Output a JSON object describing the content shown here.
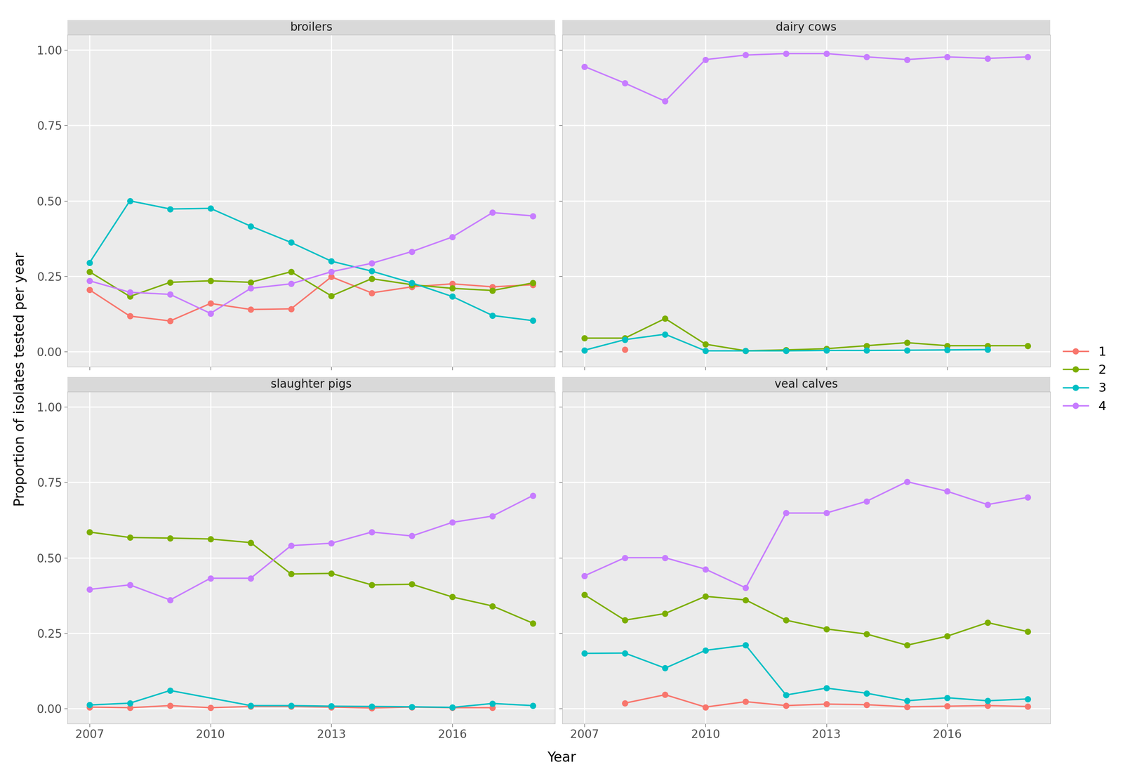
{
  "chart_data": {
    "type": "line",
    "x_label": "Year",
    "y_label": "Proportion of isolates tested per year",
    "legend": "right",
    "grid": true,
    "marker": "circle",
    "line_style": "solid",
    "x": [
      2007,
      2008,
      2009,
      2010,
      2011,
      2012,
      2013,
      2014,
      2015,
      2016,
      2017,
      2018
    ],
    "xlim": [
      2006.45,
      2018.55
    ],
    "ylim": [
      -0.05,
      1.05
    ],
    "xticks": [
      2007,
      2010,
      2013,
      2016
    ],
    "yticks": [
      {
        "value": 0,
        "label": "0.00"
      },
      {
        "value": 0.25,
        "label": "0.25"
      },
      {
        "value": 0.5,
        "label": "0.50"
      },
      {
        "value": 0.75,
        "label": "0.75"
      },
      {
        "value": 1,
        "label": "1.00"
      }
    ],
    "facets": [
      {
        "title": "broilers",
        "series": [
          {
            "name": "1",
            "color": "#F8766D",
            "values": [
              0.205,
              0.118,
              0.102,
              0.16,
              0.14,
              0.142,
              0.248,
              0.195,
              0.215,
              0.225,
              0.215,
              0.222
            ]
          },
          {
            "name": "2",
            "color": "#7CAE00",
            "values": [
              0.265,
              0.183,
              0.23,
              0.235,
              0.23,
              0.265,
              0.185,
              0.242,
              0.222,
              0.21,
              0.203,
              0.228
            ]
          },
          {
            "name": "3",
            "color": "#00BFC4",
            "values": [
              0.295,
              0.5,
              0.473,
              0.475,
              0.416,
              0.362,
              0.3,
              0.267,
              0.228,
              0.183,
              0.12,
              0.103
            ]
          },
          {
            "name": "4",
            "color": "#C77CFF",
            "values": [
              0.235,
              0.197,
              0.19,
              0.127,
              0.21,
              0.225,
              0.265,
              0.293,
              0.332,
              0.38,
              0.461,
              0.45
            ]
          }
        ]
      },
      {
        "title": "dairy cows",
        "series": [
          {
            "name": "1",
            "color": "#F8766D",
            "values": [
              null,
              0.007,
              null,
              null,
              null,
              null,
              null,
              null,
              null,
              null,
              null,
              null
            ]
          },
          {
            "name": "2",
            "color": "#7CAE00",
            "values": [
              0.045,
              0.045,
              0.11,
              0.025,
              0.003,
              0.006,
              0.01,
              0.02,
              0.03,
              0.02,
              0.02,
              0.02
            ]
          },
          {
            "name": "3",
            "color": "#00BFC4",
            "values": [
              0.005,
              0.04,
              0.058,
              0.003,
              0.003,
              0.003,
              0.004,
              0.004,
              0.005,
              0.006,
              0.007,
              null
            ]
          },
          {
            "name": "4",
            "color": "#C77CFF",
            "values": [
              0.945,
              0.89,
              0.83,
              0.968,
              0.983,
              0.988,
              0.988,
              0.977,
              0.968,
              0.977,
              0.972,
              0.977
            ]
          }
        ]
      },
      {
        "title": "slaughter pigs",
        "series": [
          {
            "name": "1",
            "color": "#F8766D",
            "values": [
              0.005,
              0.003,
              0.01,
              0.003,
              0.007,
              0.007,
              0.005,
              0.002,
              0.005,
              0.003,
              0.003,
              null
            ]
          },
          {
            "name": "2",
            "color": "#7CAE00",
            "values": [
              0.585,
              0.567,
              0.565,
              0.562,
              0.55,
              0.446,
              0.448,
              0.41,
              0.412,
              0.37,
              0.34,
              0.283
            ]
          },
          {
            "name": "3",
            "color": "#00BFC4",
            "values": [
              0.012,
              0.018,
              0.06,
              null,
              0.01,
              0.01,
              0.008,
              0.007,
              0.006,
              0.004,
              0.017,
              0.01
            ]
          },
          {
            "name": "4",
            "color": "#C77CFF",
            "values": [
              0.395,
              0.41,
              0.36,
              0.432,
              0.432,
              0.54,
              0.548,
              0.585,
              0.572,
              0.617,
              0.638,
              0.706
            ]
          }
        ]
      },
      {
        "title": "veal calves",
        "series": [
          {
            "name": "1",
            "color": "#F8766D",
            "values": [
              null,
              0.018,
              0.046,
              0.005,
              0.023,
              0.01,
              0.015,
              0.013,
              0.006,
              0.008,
              0.01,
              0.007
            ]
          },
          {
            "name": "2",
            "color": "#7CAE00",
            "values": [
              0.377,
              0.293,
              0.315,
              0.372,
              0.36,
              0.293,
              0.264,
              0.247,
              0.21,
              0.24,
              0.285,
              0.255
            ]
          },
          {
            "name": "3",
            "color": "#00BFC4",
            "values": [
              0.183,
              0.184,
              0.134,
              0.193,
              0.21,
              0.045,
              0.068,
              0.051,
              0.026,
              0.036,
              0.026,
              0.032
            ]
          },
          {
            "name": "4",
            "color": "#C77CFF",
            "values": [
              0.44,
              0.5,
              0.5,
              0.462,
              0.4,
              0.648,
              0.648,
              0.687,
              0.752,
              0.72,
              0.676,
              0.7
            ]
          }
        ]
      }
    ]
  }
}
